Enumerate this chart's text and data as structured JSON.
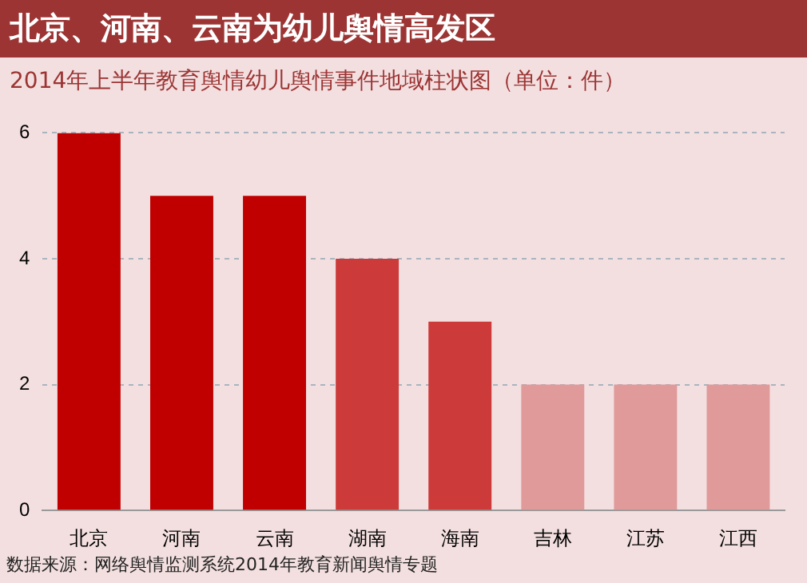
{
  "chart_data": {
    "type": "bar",
    "title": "北京、河南、云南为幼儿舆情高发区",
    "subtitle": "2014年上半年教育舆情幼儿舆情事件地域柱状图（单位：件）",
    "categories": [
      "北京",
      "河南",
      "云南",
      "湖南",
      "海南",
      "吉林",
      "江苏",
      "江西"
    ],
    "values": [
      6,
      5,
      5,
      4,
      3,
      2,
      2,
      2
    ],
    "colors": [
      "#c00000",
      "#c00000",
      "#c00000",
      "#cc3a3a",
      "#cc3a3a",
      "#e09a9a",
      "#e09a9a",
      "#e09a9a"
    ],
    "ylim": [
      0,
      6
    ],
    "yticks": [
      0,
      2,
      4,
      6
    ],
    "grid": "y",
    "legend": false,
    "annotations": [
      "数据来源：网络舆情监测系统2014年教育新闻舆情专题"
    ]
  }
}
